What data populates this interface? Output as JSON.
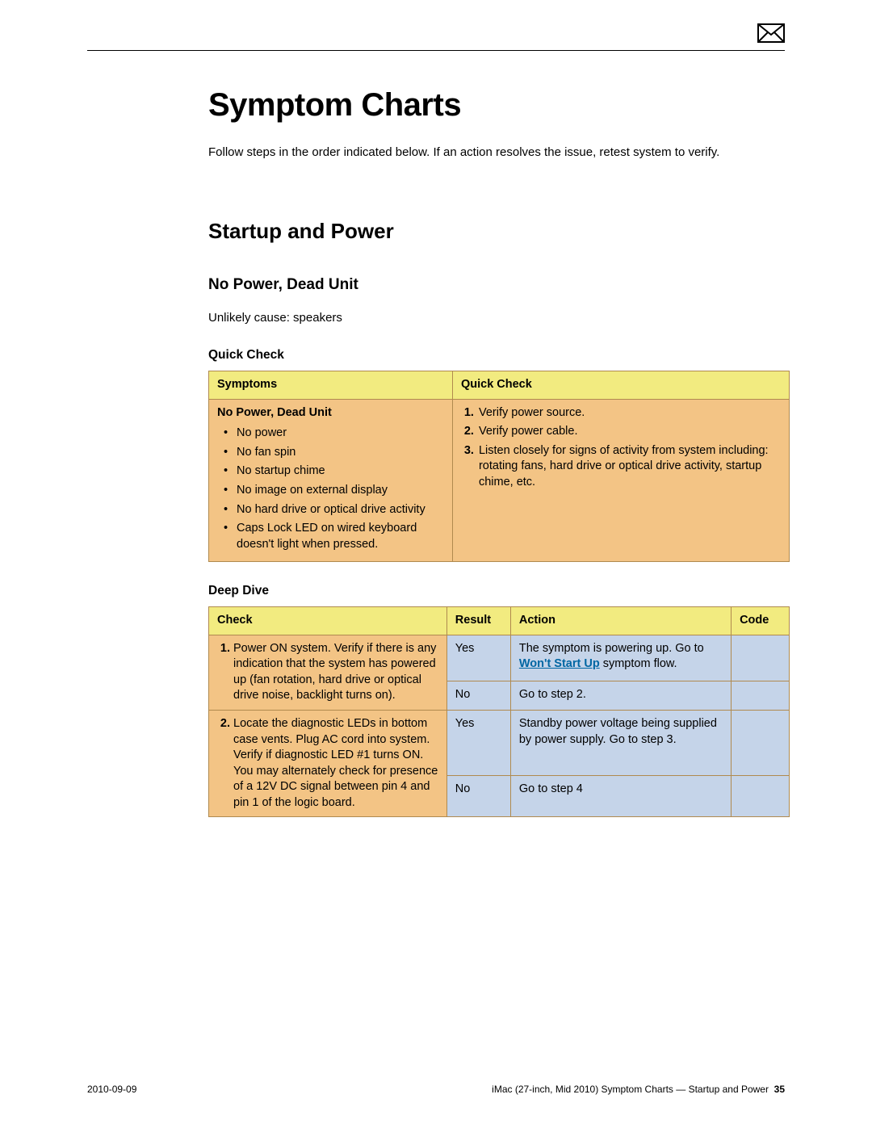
{
  "title": "Symptom Charts",
  "intro": "Follow steps in the order indicated below. If an action resolves the issue, retest system to verify.",
  "section": "Startup and Power",
  "subsection": "No Power, Dead Unit",
  "note": "Unlikely cause: speakers",
  "quickCheck": {
    "label": "Quick Check",
    "columns": {
      "symptoms": "Symptoms",
      "quick": "Quick Check"
    },
    "symptomTitle": "No Power, Dead Unit",
    "symptomBullets": [
      "No power",
      "No fan spin",
      "No startup chime",
      "No image on external display",
      "No hard drive or optical drive activity",
      "Caps Lock LED on wired keyboard doesn't light when pressed."
    ],
    "checks": [
      "Verify power source.",
      "Verify power cable.",
      "Listen closely for signs of activity from system including: rotating fans, hard drive or optical drive activity, startup chime, etc."
    ]
  },
  "deepDive": {
    "label": "Deep Dive",
    "columns": {
      "check": "Check",
      "result": "Result",
      "action": "Action",
      "code": "Code"
    },
    "rows": [
      {
        "num": "1.",
        "check": "Power ON system. Verify if there is any indication that the system has powered up (fan rotation, hard drive or optical drive noise, backlight turns on).",
        "branches": [
          {
            "result": "Yes",
            "actionPre": "The symptom is powering up. Go to ",
            "link": "Won't Start Up",
            "actionPost": " symptom flow.",
            "code": ""
          },
          {
            "result": "No",
            "actionPre": "Go to step 2.",
            "link": "",
            "actionPost": "",
            "code": ""
          }
        ]
      },
      {
        "num": "2.",
        "check": "Locate the diagnostic LEDs in bottom case vents. Plug AC cord into system. Verify if diagnostic LED #1 turns ON. You may alternately check for presence of a 12V DC signal between pin 4 and pin 1 of the logic board.",
        "branches": [
          {
            "result": "Yes",
            "actionPre": "Standby power voltage being supplied by power supply. Go to step 3.",
            "link": "",
            "actionPost": "",
            "code": ""
          },
          {
            "result": "No",
            "actionPre": "Go to step 4",
            "link": "",
            "actionPost": "",
            "code": ""
          }
        ]
      }
    ]
  },
  "colors": {
    "headerBg": "#f2eb80",
    "orangeBg": "#f3c485",
    "blueBg": "#c5d4e9",
    "border": "#b08a4f",
    "linkColor": "#0066a3"
  },
  "footer": {
    "date": "2010-09-09",
    "doc": "iMac (27-inch, Mid 2010) Symptom Charts — Startup and Power",
    "page": "35"
  },
  "tableWidths": {
    "qc_symptoms_pct": 42,
    "qc_quick_pct": 58,
    "dd_check_pct": 41,
    "dd_result_pct": 11,
    "dd_action_pct": 38,
    "dd_code_pct": 10
  }
}
